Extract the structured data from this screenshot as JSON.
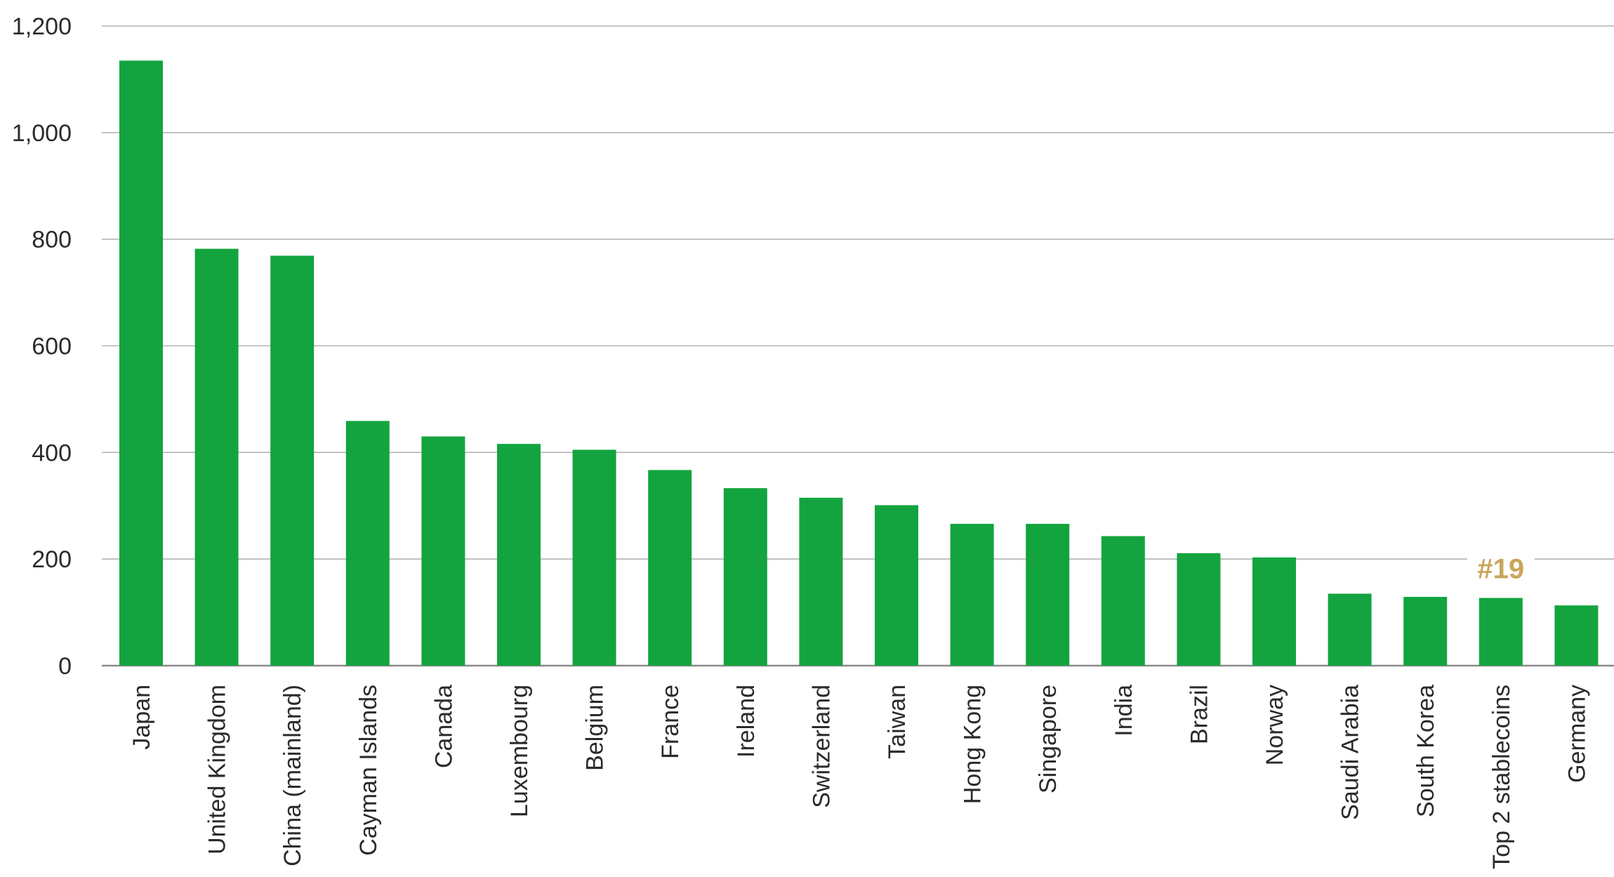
{
  "chart_data": {
    "type": "bar",
    "title": "",
    "xlabel": "",
    "ylabel": "",
    "ylim": [
      0,
      1200
    ],
    "yticks": [
      0,
      200,
      400,
      600,
      800,
      1000,
      1200
    ],
    "ytick_labels": [
      "0",
      "200",
      "400",
      "600",
      "800",
      "1,000",
      "1,200"
    ],
    "grid": "horizontal",
    "categories": [
      "Japan",
      "United Kingdom",
      "China (mainland)",
      "Cayman Islands",
      "Canada",
      "Luxembourg",
      "Belgium",
      "France",
      "Ireland",
      "Switzerland",
      "Taiwan",
      "Hong Kong",
      "Singapore",
      "India",
      "Brazil",
      "Norway",
      "Saudi Arabia",
      "South Korea",
      "Top 2 stablecoins",
      "Germany"
    ],
    "values": [
      1135,
      782,
      769,
      459,
      430,
      416,
      405,
      367,
      333,
      315,
      301,
      266,
      266,
      243,
      211,
      203,
      135,
      129,
      127,
      113
    ],
    "bar_color": "#13a43f",
    "annotations": [
      {
        "category": "Top 2 stablecoins",
        "text": "#19",
        "color": "#c9a55c"
      }
    ]
  }
}
